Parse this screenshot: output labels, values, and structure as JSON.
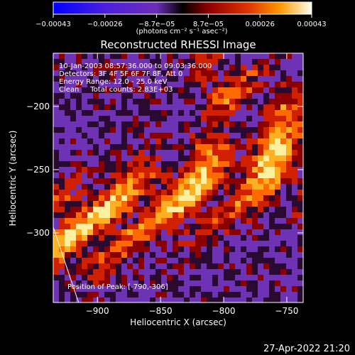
{
  "chart_data": {
    "type": "heatmap",
    "title": "Reconstructed RHESSI Image",
    "xlabel": "Heliocentric X (arcsec)",
    "ylabel": "Heliocentric Y (arcsec)",
    "xlim": [
      -935,
      -737
    ],
    "ylim": [
      -355,
      -158
    ],
    "x_ticks": [
      -900,
      -850,
      -800,
      -750
    ],
    "x_tick_labels": [
      "−900",
      "−850",
      "−800",
      "−750"
    ],
    "y_ticks": [
      -200,
      -250,
      -300
    ],
    "y_tick_labels": [
      "−200",
      "−250",
      "−300"
    ],
    "colorbar": {
      "min": -0.00043,
      "max": 0.00043,
      "tick_labels": [
        "−0.00043",
        "−0.00026",
        "−8.7e−05",
        "8.7e−05",
        "0.00026",
        "0.00043"
      ],
      "unit_label": "(photons cm⁻² s⁻¹ asec⁻²)",
      "colors": [
        "#0000ff",
        "#6a1fd6",
        "#7b3fb0",
        "#000000",
        "#8b0000",
        "#e03000",
        "#ff8c00",
        "#ffe060",
        "#ffffff"
      ]
    },
    "annotations": [
      "10-Jan-2003 08:57:36.000 to 09:03:36.000",
      "Detectors: 3F 4F 5F 6F 7F 8F, Att 0",
      "Energy Range: 12.0 - 25.0 keV",
      "Clean     Total counts: 2.83E+03"
    ],
    "peak_label": "Position of Peak: [-790,-306]",
    "peak_position": [
      -790,
      -306
    ],
    "grid": false
  },
  "footer": {
    "date": "27-Apr-2022 21:20"
  }
}
